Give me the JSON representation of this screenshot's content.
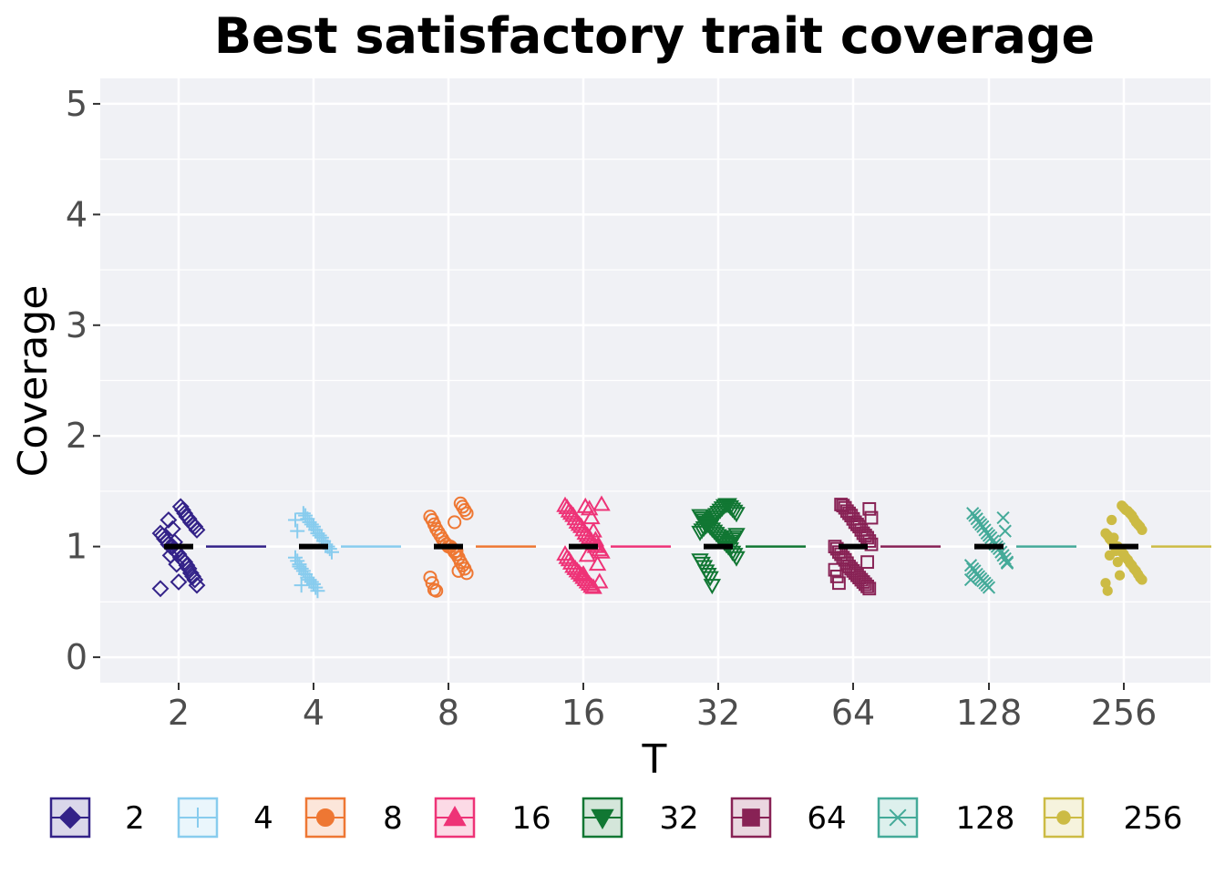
{
  "chart_data": {
    "type": "scatter",
    "title": "Best satisfactory trait coverage",
    "xlabel": "T",
    "ylabel": "Coverage",
    "categories": [
      "2",
      "4",
      "8",
      "16",
      "32",
      "64",
      "128",
      "256"
    ],
    "yticks": [
      "0",
      "1",
      "2",
      "3",
      "4",
      "5"
    ],
    "ylim": [
      -0.23,
      5.23
    ],
    "grid": true,
    "legend_position": "bottom",
    "series": [
      {
        "name": "2",
        "color": "#332288",
        "shape": "diamond-open",
        "median": 1,
        "values": [
          0.62,
          0.65,
          0.7,
          0.73,
          0.76,
          0.8,
          0.83,
          0.86,
          0.88,
          0.9,
          0.93,
          0.95,
          0.97,
          1,
          1,
          1.02,
          1.05,
          1.07,
          1.1,
          1.12,
          1.15,
          1.18,
          1.2,
          1.22,
          1.25,
          1.27,
          1.3,
          1.33,
          1.36,
          0.68,
          0.84,
          1.04,
          1.16,
          0.92,
          1.24
        ]
      },
      {
        "name": "4",
        "color": "#88CCEE",
        "shape": "plus",
        "median": 1,
        "values": [
          0.6,
          0.63,
          0.66,
          0.68,
          0.7,
          0.72,
          0.75,
          0.78,
          0.8,
          0.84,
          0.87,
          0.9,
          0.95,
          0.98,
          1,
          1.02,
          1.05,
          1.08,
          1.1,
          1.12,
          1.15,
          1.18,
          1.2,
          1.22,
          1.25,
          1.28,
          1.3,
          0.65,
          0.82,
          1.14,
          1.24
        ]
      },
      {
        "name": "8",
        "color": "#EE7733",
        "shape": "circle-open",
        "median": 1,
        "values": [
          0.6,
          0.61,
          0.67,
          0.72,
          0.76,
          0.8,
          0.83,
          0.86,
          0.9,
          0.93,
          0.95,
          0.98,
          1,
          1,
          1.02,
          1.04,
          1.07,
          1.1,
          1.13,
          1.16,
          1.2,
          1.24,
          1.27,
          1.3,
          1.33,
          1.36,
          1.39,
          0.78,
          0.96,
          1.22
        ]
      },
      {
        "name": "16",
        "color": "#EE3377",
        "shape": "triangle-up-open",
        "median": 1,
        "values": [
          0.63,
          0.64,
          0.66,
          0.68,
          0.7,
          0.72,
          0.74,
          0.76,
          0.78,
          0.8,
          0.82,
          0.85,
          0.88,
          0.9,
          0.93,
          0.95,
          0.97,
          1,
          1,
          1.02,
          1.05,
          1.08,
          1.1,
          1.12,
          1.15,
          1.18,
          1.2,
          1.22,
          1.25,
          1.28,
          1.3,
          1.32,
          1.35,
          1.37,
          1.38,
          0.68,
          0.84,
          1.06,
          1.14,
          1.26,
          1.34,
          0.92,
          1.36,
          0.75
        ]
      },
      {
        "name": "32",
        "color": "#117733",
        "shape": "triangle-down-open",
        "median": 1,
        "values": [
          0.65,
          0.72,
          0.75,
          0.78,
          0.82,
          0.85,
          0.88,
          0.9,
          0.93,
          0.95,
          0.98,
          1,
          1.02,
          1.04,
          1.06,
          1.08,
          1.1,
          1.12,
          1.14,
          1.16,
          1.18,
          1.2,
          1.22,
          1.24,
          1.26,
          1.28,
          1.3,
          1.32,
          1.34,
          1.36,
          1.38,
          1.38,
          1.37,
          1.35,
          1.33,
          1.31,
          1.29,
          1.27,
          1.25,
          1.23,
          1.21,
          1.19,
          1.17,
          1.15,
          1.13,
          1.11,
          1.09,
          1.07,
          1.05,
          1.03
        ]
      },
      {
        "name": "64",
        "color": "#882255",
        "shape": "square-open",
        "median": 1,
        "values": [
          0.62,
          0.64,
          0.66,
          0.68,
          0.7,
          0.72,
          0.74,
          0.76,
          0.78,
          0.8,
          0.82,
          0.85,
          0.88,
          0.9,
          0.93,
          0.95,
          0.98,
          1,
          1.02,
          1.05,
          1.08,
          1.1,
          1.12,
          1.15,
          1.18,
          1.2,
          1.22,
          1.25,
          1.28,
          1.3,
          1.32,
          1.35,
          1.37,
          1.38,
          0.67,
          0.73,
          0.79,
          1.26,
          1.34,
          0.86
        ]
      },
      {
        "name": "128",
        "color": "#44AA99",
        "shape": "x",
        "median": 1,
        "values": [
          0.63,
          0.65,
          0.67,
          0.69,
          0.71,
          0.73,
          0.75,
          0.78,
          0.8,
          0.83,
          0.86,
          0.89,
          0.92,
          0.95,
          0.98,
          1,
          1.02,
          1.05,
          1.08,
          1.1,
          1.12,
          1.15,
          1.18,
          1.2,
          1.22,
          1.25,
          1.28,
          1.3,
          0.7,
          0.85,
          1.14,
          1.26
        ]
      },
      {
        "name": "256",
        "color": "#CCBB44",
        "shape": "circle-filled",
        "median": 1,
        "values": [
          0.6,
          0.67,
          0.7,
          0.72,
          0.75,
          0.78,
          0.8,
          0.83,
          0.85,
          0.88,
          0.9,
          0.93,
          0.95,
          0.97,
          1,
          1,
          1.02,
          1.05,
          1.07,
          1.1,
          1.12,
          1.15,
          1.18,
          1.2,
          1.22,
          1.25,
          1.28,
          1.3,
          1.32,
          1.33,
          1.35,
          1.37,
          0.74,
          0.86,
          0.96,
          1.08,
          1.24,
          0.92
        ]
      }
    ]
  }
}
